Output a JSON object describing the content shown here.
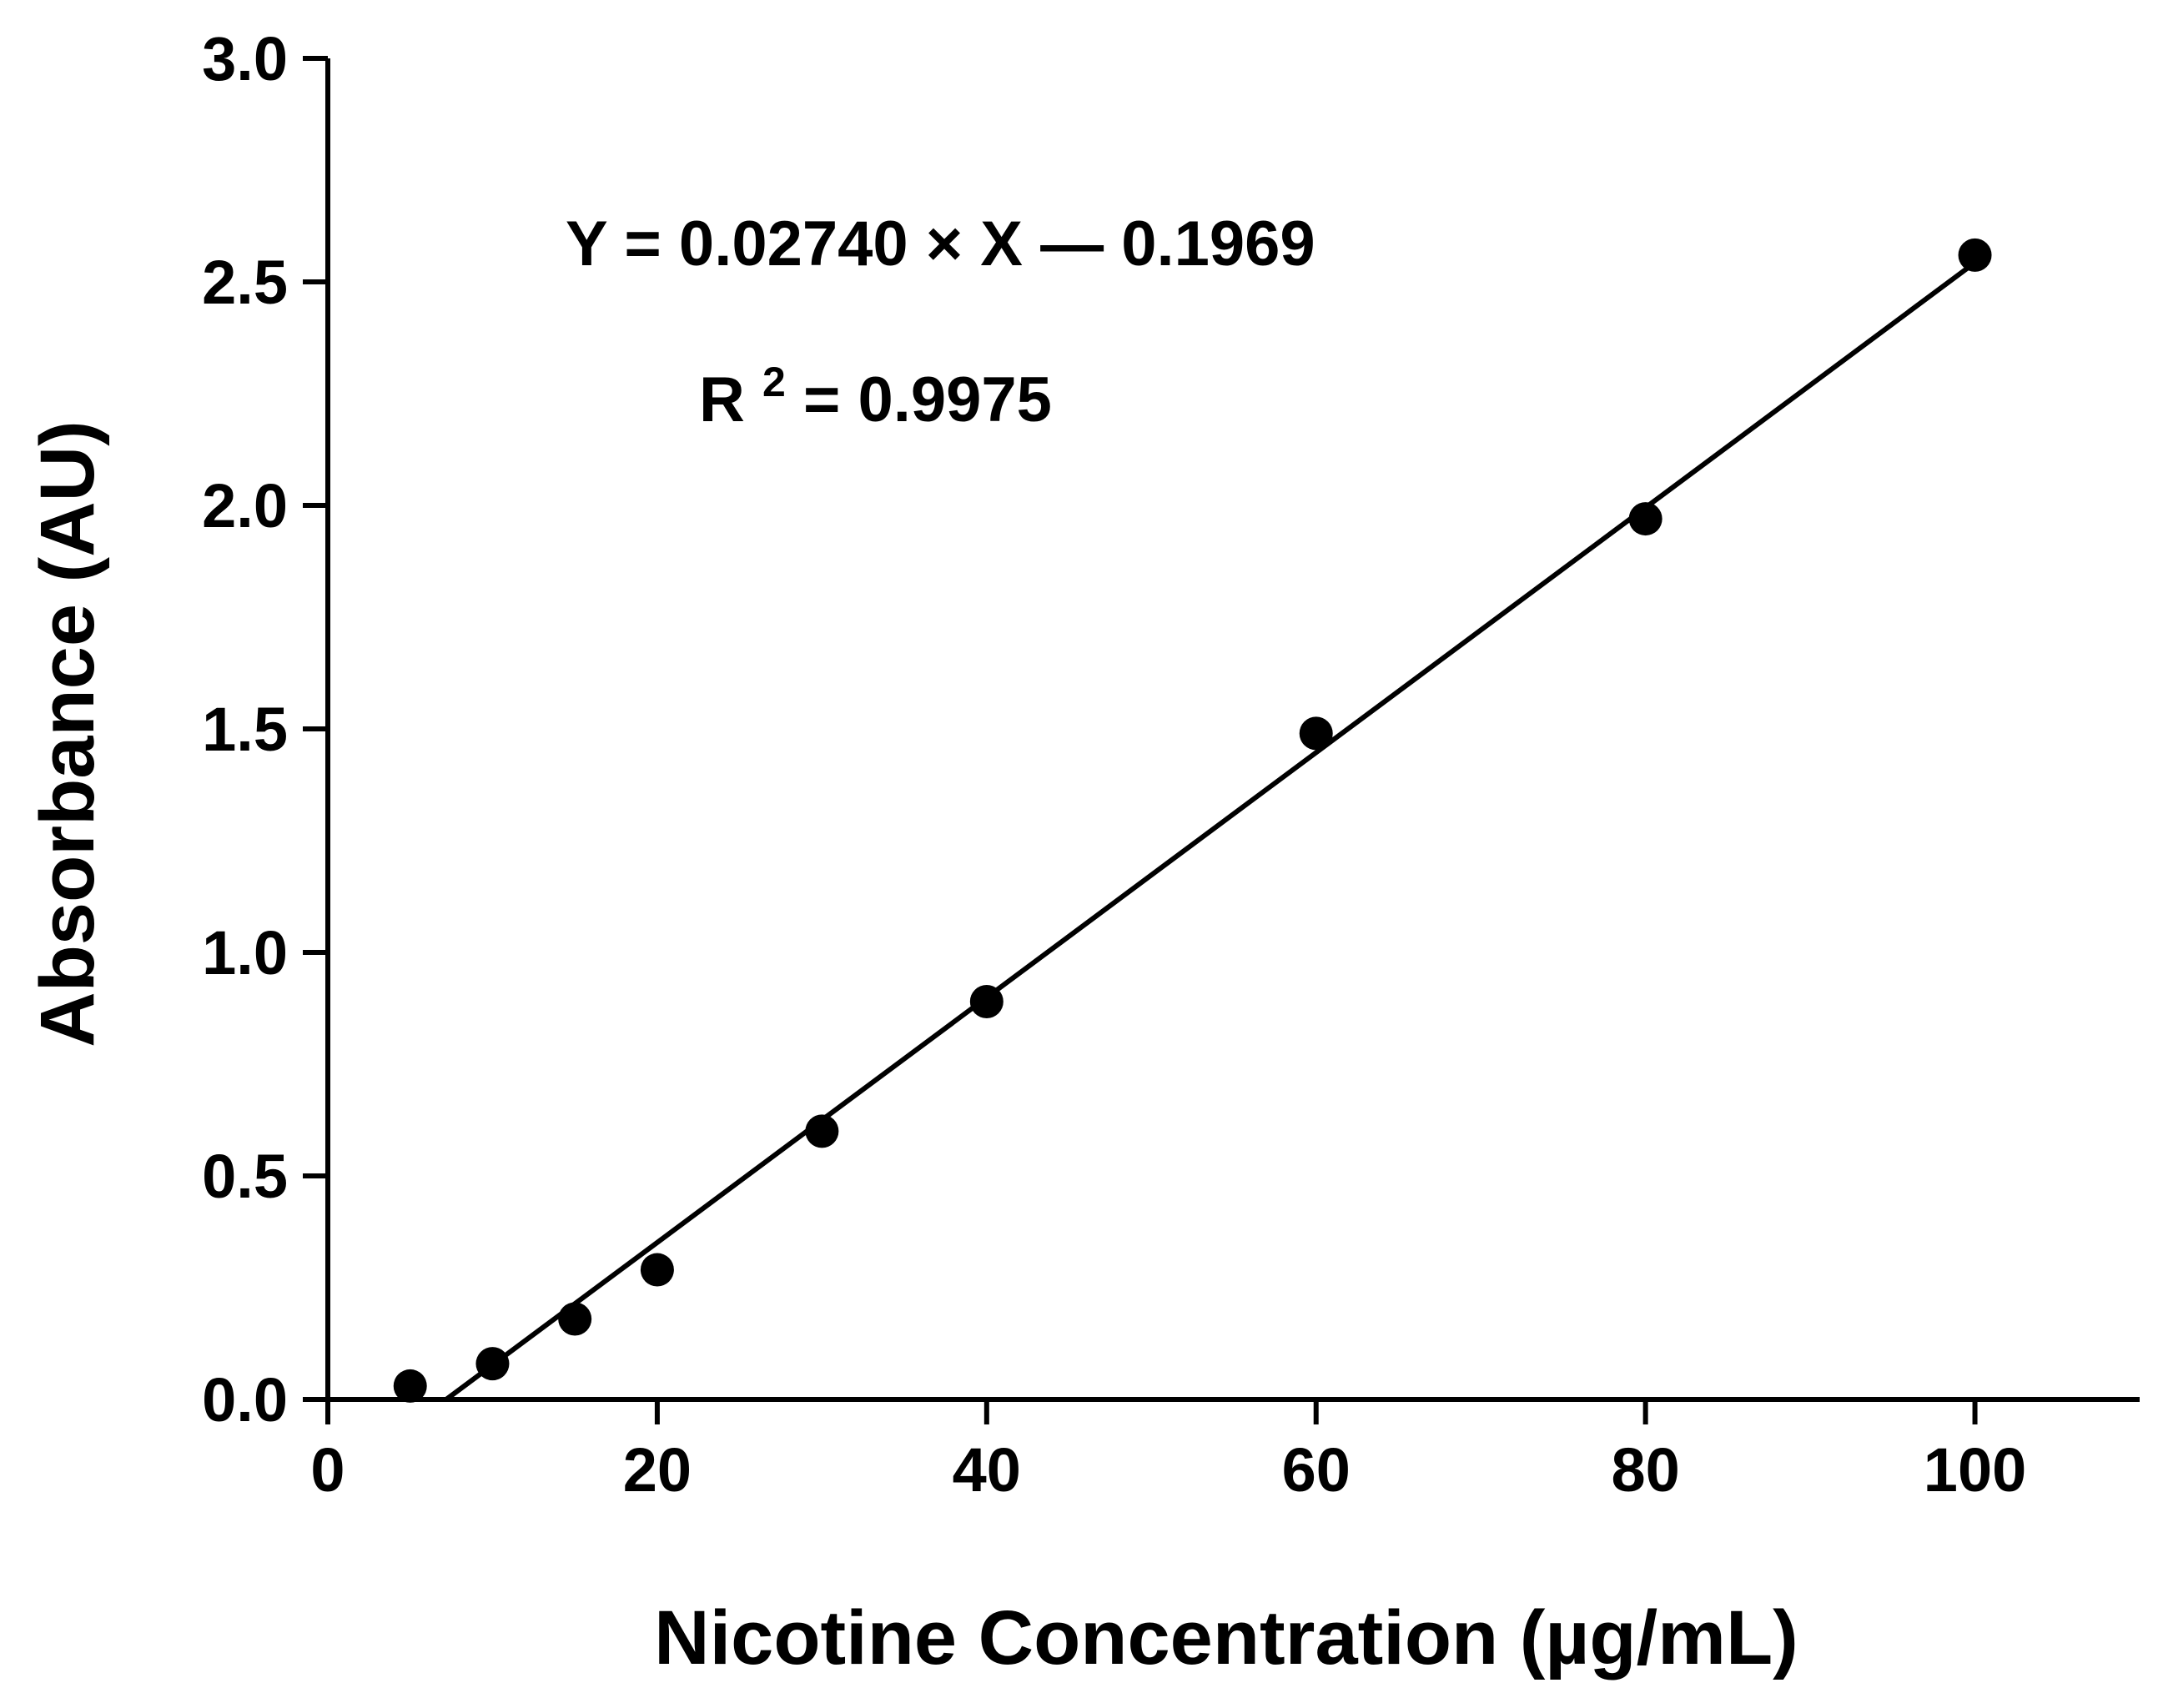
{
  "chart_data": {
    "type": "scatter",
    "xlabel": "Nicotine Concentration (µg/mL)",
    "ylabel": "Absorbance (AU)",
    "xlim": [
      0,
      110
    ],
    "ylim": [
      0,
      3.0
    ],
    "xticks": [
      0,
      20,
      40,
      60,
      80,
      100
    ],
    "xtick_labels": [
      "0",
      "20",
      "40",
      "60",
      "80",
      "100"
    ],
    "yticks": [
      0.0,
      0.5,
      1.0,
      1.5,
      2.0,
      2.5,
      3.0
    ],
    "ytick_labels": [
      "0.0",
      "0.5",
      "1.0",
      "1.5",
      "2.0",
      "2.5",
      "3.0"
    ],
    "grid": false,
    "legend": "none",
    "series": [
      {
        "x": [
          5,
          10,
          15,
          20,
          30,
          40,
          60,
          80,
          100
        ],
        "y": [
          0.03,
          0.08,
          0.18,
          0.29,
          0.6,
          0.89,
          1.49,
          1.97,
          2.56
        ],
        "color": "#000000"
      }
    ],
    "fit": {
      "slope": 0.0274,
      "intercept": -0.1969,
      "x_range": [
        7.2,
        100
      ]
    },
    "annotations": {
      "equation": "Y = 0.02740 × X — 0.1969",
      "r2_prefix": "R",
      "r2_superscript": "2",
      "r2_value": " = 0.9975"
    }
  }
}
